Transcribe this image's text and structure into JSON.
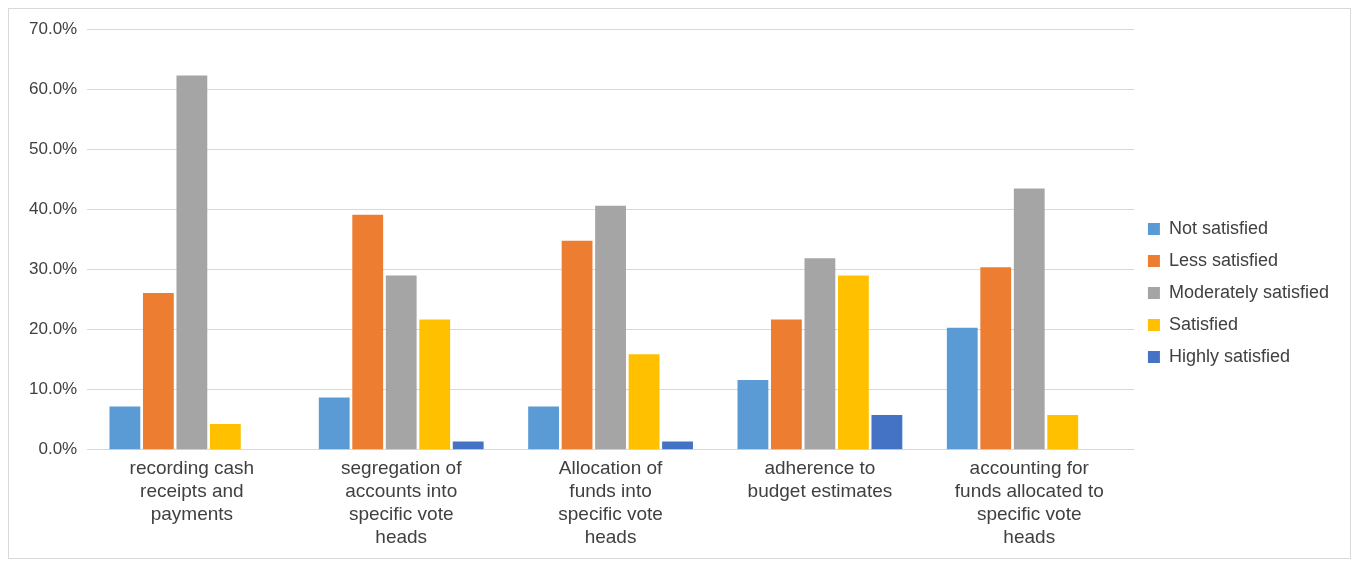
{
  "chart_data": {
    "type": "bar",
    "categories": [
      "recording cash receipts and payments",
      "segregation of accounts into specific vote heads",
      "Allocation of funds into specific vote heads",
      "adherence to budget estimates",
      "accounting for funds allocated to specific vote heads"
    ],
    "series": [
      {
        "name": "Not satisfied",
        "color": "#5b9bd5",
        "values": [
          7.2,
          8.7,
          7.2,
          11.6,
          20.3
        ]
      },
      {
        "name": "Less satisfied",
        "color": "#ed7d31",
        "values": [
          26.1,
          39.1,
          34.8,
          21.7,
          30.4
        ]
      },
      {
        "name": "Moderately satisfied",
        "color": "#a5a5a5",
        "values": [
          62.3,
          29.0,
          40.6,
          31.9,
          43.5
        ]
      },
      {
        "name": "Satisfied",
        "color": "#ffc000",
        "values": [
          4.3,
          21.7,
          15.9,
          29.0,
          5.8
        ]
      },
      {
        "name": "Highly satisfied",
        "color": "#4472c4",
        "values": [
          0,
          1.4,
          1.4,
          5.8,
          0
        ]
      }
    ],
    "ylim": [
      0,
      70
    ],
    "yticks": [
      {
        "value": 0,
        "label": "0.0%"
      },
      {
        "value": 10,
        "label": "10.0%"
      },
      {
        "value": 20,
        "label": "20.0%"
      },
      {
        "value": 30,
        "label": "30.0%"
      },
      {
        "value": 40,
        "label": "40.0%"
      },
      {
        "value": 50,
        "label": "50.0%"
      },
      {
        "value": 60,
        "label": "60.0%"
      },
      {
        "value": 70,
        "label": "70.0%"
      }
    ],
    "grid": "y",
    "legend": "right"
  }
}
